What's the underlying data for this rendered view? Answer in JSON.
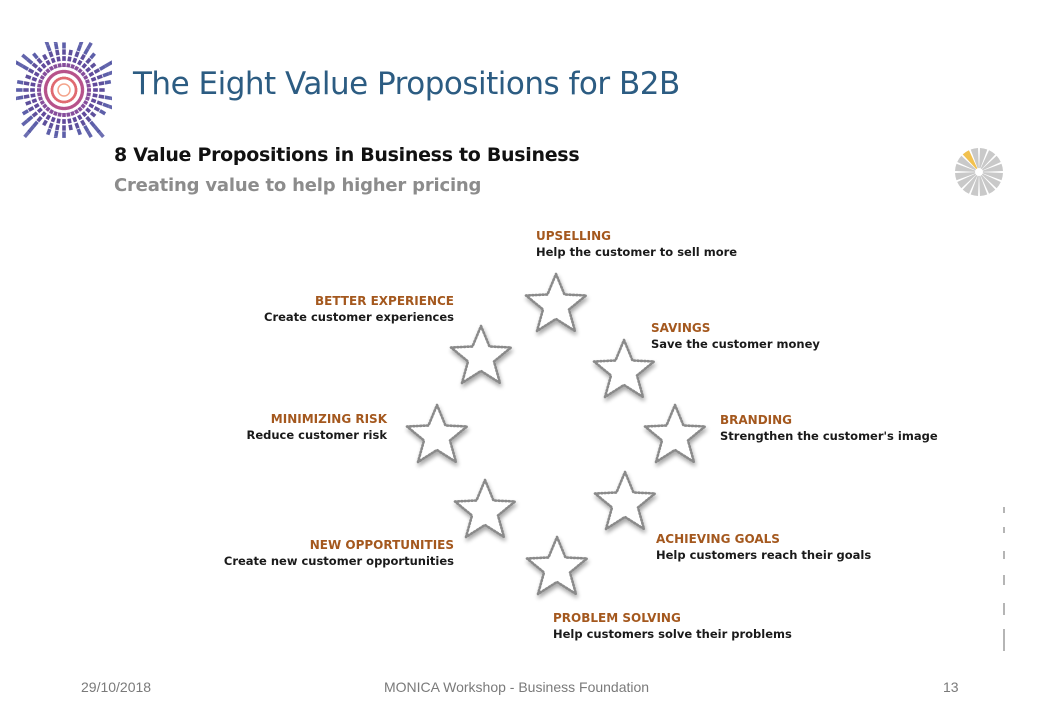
{
  "title": "The Eight Value Propositions for B2B",
  "figure": {
    "heading": "8 Value Propositions in Business to Business",
    "subheading": "Creating value to help higher pricing",
    "propositions": [
      {
        "title": "UPSELLING",
        "text": "Help the customer to sell more"
      },
      {
        "title": "SAVINGS",
        "text": "Save the customer money"
      },
      {
        "title": "BRANDING",
        "text": "Strengthen the customer's image"
      },
      {
        "title": "ACHIEVING GOALS",
        "text": "Help customers reach their goals"
      },
      {
        "title": "PROBLEM SOLVING",
        "text": "Help customers solve their problems"
      },
      {
        "title": "NEW OPPORTUNITIES",
        "text": "Create new customer opportunities"
      },
      {
        "title": "MINIMIZING RISK",
        "text": "Reduce customer risk"
      },
      {
        "title": "BETTER EXPERIENCE",
        "text": "Create customer experiences"
      }
    ]
  },
  "footer": {
    "date": "29/10/2018",
    "event": "MONICA Workshop  - Business Foundation",
    "page": "13"
  },
  "colors": {
    "title": "#2c5c82",
    "proposition_title": "#a4581e",
    "footer": "#7a7a7a",
    "logo_primary": "#3b2a86",
    "logo_accent": "#e06a70"
  },
  "icons": [
    "monica-logo-icon",
    "pie-wheel-icon",
    "star-icon"
  ]
}
